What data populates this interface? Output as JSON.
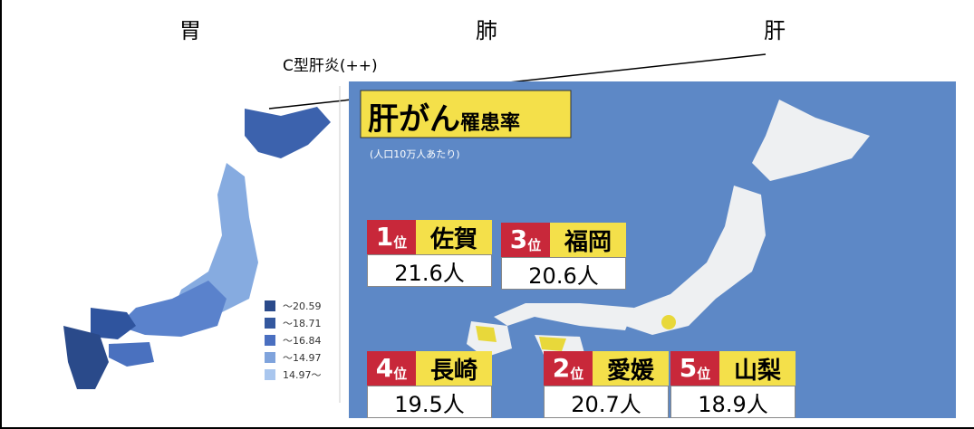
{
  "header": {
    "labels": [
      "胃",
      "肺",
      "肝"
    ],
    "annotation": "C型肝炎(++)"
  },
  "left_map": {
    "legend": [
      "〜20.59",
      "〜18.71",
      "〜16.84",
      "〜14.97",
      "14.97〜"
    ]
  },
  "right_panel": {
    "title": "肝がん",
    "title_suffix": "罹患率",
    "subtitle": "(人口10万人あたり)",
    "rankings": [
      {
        "rank": "1",
        "unit": "位",
        "prefecture": "佐賀",
        "value": "21.6人"
      },
      {
        "rank": "3",
        "unit": "位",
        "prefecture": "福岡",
        "value": "20.6人"
      },
      {
        "rank": "4",
        "unit": "位",
        "prefecture": "長崎",
        "value": "19.5人"
      },
      {
        "rank": "2",
        "unit": "位",
        "prefecture": "愛媛",
        "value": "20.7人"
      },
      {
        "rank": "5",
        "unit": "位",
        "prefecture": "山梨",
        "value": "18.9人"
      }
    ]
  }
}
